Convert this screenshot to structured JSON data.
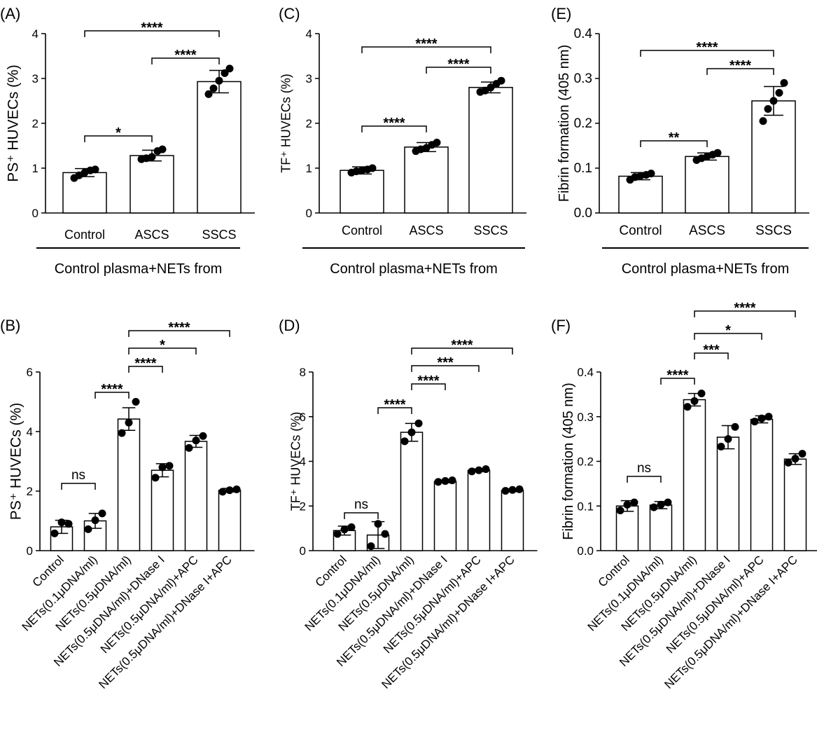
{
  "chart_data": [
    {
      "panel": "(A)",
      "type": "bar",
      "ylabel": "PS⁺ HUVECs (%)",
      "ylim": [
        0,
        4
      ],
      "yticks": [
        "0",
        "1",
        "2",
        "3",
        "4"
      ],
      "categories": [
        "Control",
        "ASCS",
        "SSCS"
      ],
      "values": [
        0.9,
        1.28,
        2.93
      ],
      "errors": [
        0.09,
        0.12,
        0.25
      ],
      "points": [
        [
          0.78,
          0.84,
          0.9,
          0.95,
          0.97
        ],
        [
          1.2,
          1.22,
          1.25,
          1.38,
          1.42
        ],
        [
          2.65,
          2.78,
          2.95,
          3.12,
          3.22
        ]
      ],
      "group_label": "Control plasma+NETs from",
      "brackets": [
        {
          "from": 0,
          "to": 1,
          "label": "*"
        },
        {
          "from": 1,
          "to": 2,
          "label": "****"
        },
        {
          "from": 0,
          "to": 2,
          "label": "****"
        }
      ]
    },
    {
      "panel": "(C)",
      "type": "bar",
      "ylabel": "TF⁺ HUVECs (%)",
      "ylim": [
        0,
        4
      ],
      "yticks": [
        "0",
        "1",
        "2",
        "3",
        "4"
      ],
      "categories": [
        "Control",
        "ASCS",
        "SSCS"
      ],
      "values": [
        0.95,
        1.47,
        2.8
      ],
      "errors": [
        0.08,
        0.1,
        0.12
      ],
      "points": [
        [
          0.9,
          0.93,
          0.95,
          0.97,
          1.0
        ],
        [
          1.38,
          1.42,
          1.45,
          1.52,
          1.57
        ],
        [
          2.7,
          2.73,
          2.8,
          2.88,
          2.95
        ]
      ],
      "group_label": "Control plasma+NETs from",
      "brackets": [
        {
          "from": 0,
          "to": 1,
          "label": "****"
        },
        {
          "from": 1,
          "to": 2,
          "label": "****"
        },
        {
          "from": 0,
          "to": 2,
          "label": "****"
        }
      ]
    },
    {
      "panel": "(E)",
      "type": "bar",
      "ylabel": "Fibrin formation (405 nm)",
      "ylim": [
        0,
        0.4
      ],
      "yticks": [
        "0.0",
        "0.1",
        "0.2",
        "0.3",
        "0.4"
      ],
      "categories": [
        "Control",
        "ASCS",
        "SSCS"
      ],
      "values": [
        0.082,
        0.126,
        0.25
      ],
      "errors": [
        0.008,
        0.008,
        0.032
      ],
      "points": [
        [
          0.074,
          0.08,
          0.083,
          0.085,
          0.088
        ],
        [
          0.118,
          0.122,
          0.126,
          0.13,
          0.134
        ],
        [
          0.205,
          0.232,
          0.25,
          0.268,
          0.29
        ]
      ],
      "group_label": "Control plasma+NETs from",
      "brackets": [
        {
          "from": 0,
          "to": 1,
          "label": "**"
        },
        {
          "from": 1,
          "to": 2,
          "label": "****"
        },
        {
          "from": 0,
          "to": 2,
          "label": "****"
        }
      ]
    },
    {
      "panel": "(B)",
      "type": "bar",
      "ylabel": "PS⁺ HUVECs (%)",
      "ylim": [
        0,
        6
      ],
      "yticks": [
        "0",
        "2",
        "4",
        "6"
      ],
      "categories": [
        "Control",
        "NETs(0.1μDNA/ml)",
        "NETs(0.5μDNA/ml)",
        "NETs(0.5μDNA/ml)+DNase I",
        "NETs(0.5μDNA/ml)+APC",
        "NETs(0.5μDNA/ml)+DNase I+APC"
      ],
      "values": [
        0.8,
        1.0,
        4.42,
        2.7,
        3.67,
        2.03
      ],
      "errors": [
        0.22,
        0.25,
        0.38,
        0.22,
        0.2,
        0.06
      ],
      "points": [
        [
          0.58,
          0.95,
          0.9
        ],
        [
          0.72,
          1.02,
          1.25
        ],
        [
          3.95,
          4.3,
          5.0
        ],
        [
          2.45,
          2.8,
          2.85
        ],
        [
          3.45,
          3.7,
          3.85
        ],
        [
          1.98,
          2.03,
          2.06
        ]
      ],
      "brackets": [
        {
          "from": 0,
          "to": 1,
          "label": "ns"
        },
        {
          "from": 1,
          "to": 2,
          "label": "****"
        },
        {
          "from": 2,
          "to": 3,
          "label": "****"
        },
        {
          "from": 2,
          "to": 4,
          "label": "*"
        },
        {
          "from": 2,
          "to": 5,
          "label": "****"
        }
      ]
    },
    {
      "panel": "(D)",
      "type": "bar",
      "ylabel": "TF⁺ HUVECs (%)",
      "ylim": [
        0,
        8
      ],
      "yticks": [
        "0",
        "2",
        "4",
        "6",
        "8"
      ],
      "categories": [
        "Control",
        "NETs(0.1μDNA/ml)",
        "NETs(0.5μDNA/ml)",
        "NETs(0.5μDNA/ml)+DNase I",
        "NETs(0.5μDNA/ml)+APC",
        "NETs(0.5μDNA/ml)+DNase I+APC"
      ],
      "values": [
        0.9,
        0.7,
        5.3,
        3.1,
        3.6,
        2.7
      ],
      "errors": [
        0.2,
        0.6,
        0.4,
        0.06,
        0.06,
        0.06
      ],
      "points": [
        [
          0.75,
          0.95,
          1.05
        ],
        [
          0.2,
          1.2,
          0.75
        ],
        [
          4.9,
          5.3,
          5.7
        ],
        [
          3.08,
          3.12,
          3.15
        ],
        [
          3.55,
          3.6,
          3.65
        ],
        [
          2.68,
          2.72,
          2.75
        ]
      ],
      "brackets": [
        {
          "from": 0,
          "to": 1,
          "label": "ns"
        },
        {
          "from": 1,
          "to": 2,
          "label": "****"
        },
        {
          "from": 2,
          "to": 3,
          "label": "****"
        },
        {
          "from": 2,
          "to": 4,
          "label": "***"
        },
        {
          "from": 2,
          "to": 5,
          "label": "****"
        }
      ]
    },
    {
      "panel": "(F)",
      "type": "bar",
      "ylabel": "Fibrin formation (405 nm)",
      "ylim": [
        0,
        0.4
      ],
      "yticks": [
        "0.0",
        "0.1",
        "0.2",
        "0.3",
        "0.4"
      ],
      "categories": [
        "Control",
        "NETs(0.1μDNA/ml)",
        "NETs(0.5μDNA/ml)",
        "NETs(0.5μDNA/ml)+DNase I",
        "NETs(0.5μDNA/ml)+APC",
        "NETs(0.5μDNA/ml)+DNase I+APC"
      ],
      "values": [
        0.1,
        0.102,
        0.338,
        0.254,
        0.294,
        0.205
      ],
      "errors": [
        0.012,
        0.008,
        0.014,
        0.026,
        0.008,
        0.012
      ],
      "points": [
        [
          0.09,
          0.103,
          0.108
        ],
        [
          0.097,
          0.103,
          0.108
        ],
        [
          0.322,
          0.335,
          0.352
        ],
        [
          0.233,
          0.25,
          0.277
        ],
        [
          0.289,
          0.296,
          0.3
        ],
        [
          0.197,
          0.206,
          0.217
        ]
      ],
      "brackets": [
        {
          "from": 0,
          "to": 1,
          "label": "ns"
        },
        {
          "from": 1,
          "to": 2,
          "label": "****"
        },
        {
          "from": 2,
          "to": 3,
          "label": "***"
        },
        {
          "from": 2,
          "to": 4,
          "label": "*"
        },
        {
          "from": 2,
          "to": 5,
          "label": "****"
        }
      ]
    }
  ]
}
